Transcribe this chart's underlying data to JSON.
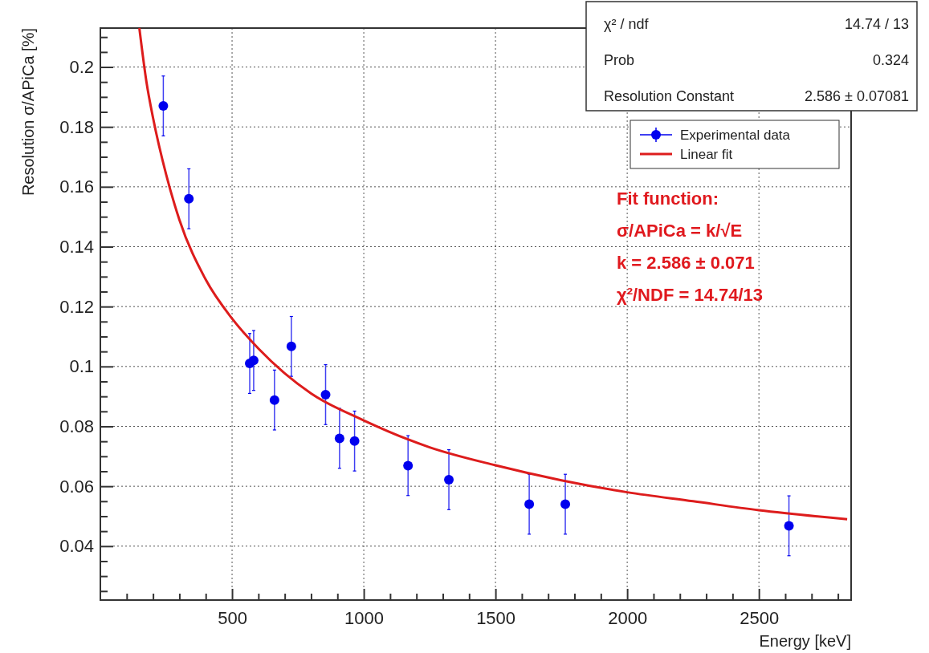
{
  "chart_data": {
    "type": "scatter",
    "xlabel": "Energy [keV]",
    "ylabel": "Resolution σ/APiCa [%]",
    "xlim": [
      0,
      2850
    ],
    "ylim": [
      0.022,
      0.213
    ],
    "xticks": [
      {
        "value": 100,
        "label": null
      },
      {
        "value": 200,
        "label": null
      },
      {
        "value": 300,
        "label": null
      },
      {
        "value": 400,
        "label": null
      },
      500,
      {
        "value": 600,
        "label": null
      },
      {
        "value": 700,
        "label": null
      },
      {
        "value": 800,
        "label": null
      },
      {
        "value": 900,
        "label": null
      },
      1000,
      {
        "value": 1100,
        "label": null
      },
      {
        "value": 1200,
        "label": null
      },
      {
        "value": 1300,
        "label": null
      },
      {
        "value": 1400,
        "label": null
      },
      1500,
      {
        "value": 1600,
        "label": null
      },
      {
        "value": 1700,
        "label": null
      },
      {
        "value": 1800,
        "label": null
      },
      {
        "value": 1900,
        "label": null
      },
      2000,
      {
        "value": 2100,
        "label": null
      },
      {
        "value": 2200,
        "label": null
      },
      {
        "value": 2300,
        "label": null
      },
      {
        "value": 2400,
        "label": null
      },
      2500,
      {
        "value": 2600,
        "label": null
      },
      {
        "value": 2700,
        "label": null
      },
      {
        "value": 2800,
        "label": null
      }
    ],
    "yticks": [
      {
        "value": 0.025,
        "label": null
      },
      {
        "value": 0.03,
        "label": null
      },
      {
        "value": 0.035,
        "label": null
      },
      0.04,
      {
        "value": 0.045,
        "label": null
      },
      {
        "value": 0.05,
        "label": null
      },
      {
        "value": 0.055,
        "label": null
      },
      0.06,
      {
        "value": 0.065,
        "label": null
      },
      {
        "value": 0.07,
        "label": null
      },
      {
        "value": 0.075,
        "label": null
      },
      0.08,
      {
        "value": 0.085,
        "label": null
      },
      {
        "value": 0.09,
        "label": null
      },
      {
        "value": 0.095,
        "label": null
      },
      0.1,
      {
        "value": 0.105,
        "label": null
      },
      {
        "value": 0.11,
        "label": null
      },
      {
        "value": 0.115,
        "label": null
      },
      0.12,
      {
        "value": 0.125,
        "label": null
      },
      {
        "value": 0.13,
        "label": null
      },
      {
        "value": 0.135,
        "label": null
      },
      0.14,
      {
        "value": 0.145,
        "label": null
      },
      {
        "value": 0.15,
        "label": null
      },
      {
        "value": 0.155,
        "label": null
      },
      0.16,
      {
        "value": 0.165,
        "label": null
      },
      {
        "value": 0.17,
        "label": null
      },
      {
        "value": 0.175,
        "label": null
      },
      0.18,
      {
        "value": 0.185,
        "label": null
      },
      {
        "value": 0.19,
        "label": null
      },
      {
        "value": 0.195,
        "label": null
      },
      0.2,
      {
        "value": 0.205,
        "label": null
      },
      {
        "value": 0.21,
        "label": null
      }
    ],
    "grid": true,
    "legend": "top right",
    "annotations": [
      "χ² / ndf",
      "14.74 / 13",
      "Prob",
      "0.324",
      "Resolution Constant",
      "2.586 ± 0.07081",
      "Fit function:",
      "σ/APiCa = k/√E",
      "k = 2.586 ± 0.071",
      "χ²/NDF = 14.74/13"
    ],
    "series": [
      {
        "name": "Experimental data",
        "color": "#0000ee",
        "marker": "circle",
        "x": [
          239,
          336,
          567,
          582,
          661,
          725,
          855,
          908,
          965,
          1168,
          1323,
          1628,
          1765,
          2614
        ],
        "values": [
          0.187,
          0.156,
          0.101,
          0.102,
          0.0888,
          0.1067,
          0.0906,
          0.076,
          0.0751,
          0.0669,
          0.0622,
          0.054,
          0.054,
          0.0468
        ],
        "errors": [
          0.01,
          0.01,
          0.01,
          0.01,
          0.01,
          0.01,
          0.01,
          0.01,
          0.01,
          0.01,
          0.01,
          0.01,
          0.01,
          0.01
        ]
      },
      {
        "name": "Linear fit",
        "type": "line",
        "color": "#dd1c1c",
        "marker": "none",
        "x": [
          148,
          175,
          200,
          250,
          300,
          400,
          500,
          600,
          800,
          1000,
          1250,
          1500,
          1750,
          2000,
          2250,
          2500,
          2835
        ],
        "values": [
          0.213,
          0.195,
          0.183,
          0.164,
          0.149,
          0.129,
          0.116,
          0.106,
          0.091,
          0.082,
          0.073,
          0.067,
          0.062,
          0.058,
          0.055,
          0.052,
          0.049
        ]
      }
    ]
  }
}
